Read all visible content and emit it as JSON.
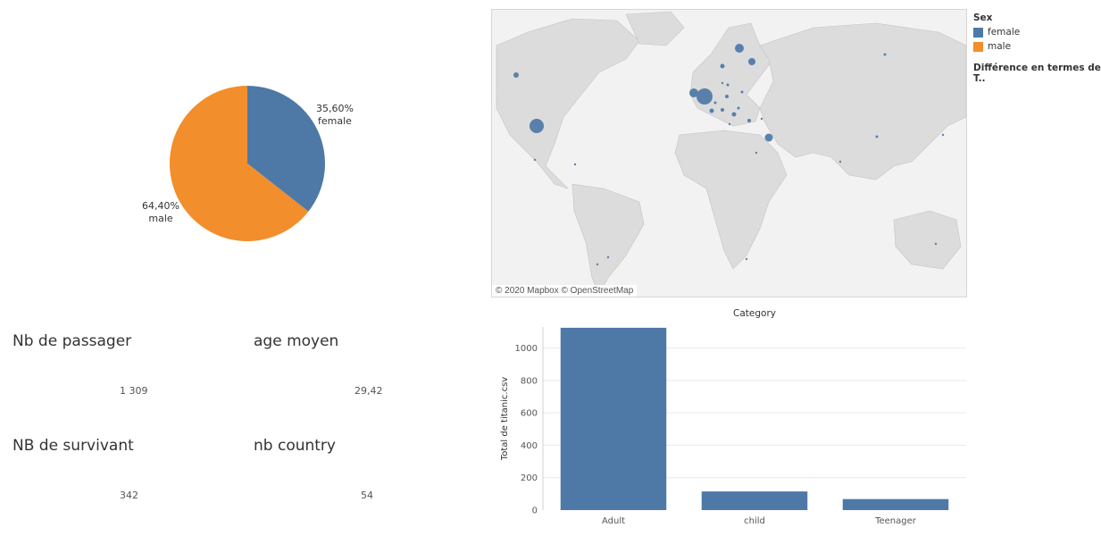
{
  "pie": {
    "slices": [
      {
        "label": "female",
        "percent_text": "35,60%",
        "value": 35.6,
        "color": "#4e79a7"
      },
      {
        "label": "male",
        "percent_text": "64,40%",
        "value": 64.4,
        "color": "#f28e2b"
      }
    ]
  },
  "legend": {
    "title": "Sex",
    "items": [
      {
        "label": "female",
        "color": "#4e79a7"
      },
      {
        "label": "male",
        "color": "#f28e2b"
      }
    ],
    "size_title": "Différence en termes de T.."
  },
  "map": {
    "credit": "© 2020 Mapbox © OpenStreetMap"
  },
  "kpis": {
    "passengers": {
      "title": "Nb de passager",
      "value": "1 309"
    },
    "age": {
      "title": "age moyen",
      "value": "29,42"
    },
    "survivors": {
      "title": "NB de survivant",
      "value": "342"
    },
    "countries": {
      "title": "nb country",
      "value": "54"
    }
  },
  "chart_data": {
    "type": "bar",
    "title": "Category",
    "xlabel": "",
    "ylabel": "Total de titanic.csv",
    "categories": [
      "Adult",
      "child",
      "Teenager"
    ],
    "values": [
      1125,
      115,
      68
    ],
    "yticks": [
      0,
      200,
      400,
      600,
      800,
      1000
    ],
    "ylim": [
      0,
      1130
    ],
    "color": "#4e79a7",
    "grid": true
  }
}
